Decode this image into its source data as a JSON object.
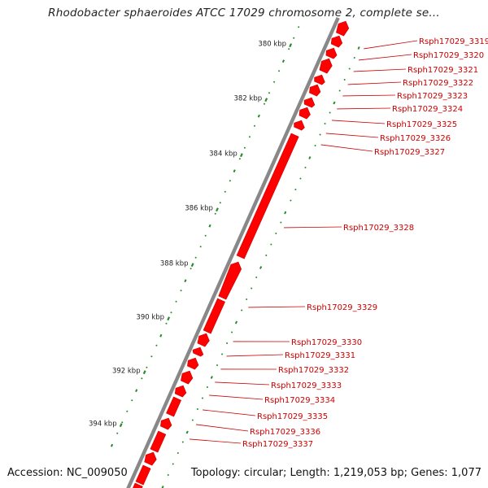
{
  "title": "Rhodobacter sphaeroides ATCC 17029 chromosome 2, complete se...",
  "footer": {
    "accession": "Accession: NC_009050",
    "info": "Topology: circular; Length: 1,219,053 bp; Genes: 1,077"
  },
  "colors": {
    "gene": "#ff0000",
    "gene_dark": "#c80000",
    "backbone": "#888888",
    "tick_label": "#222222",
    "dotted_track": "#2a8a2a",
    "label": "#cc0000"
  },
  "kbp_ticks": [
    "380 kbp",
    "382 kbp",
    "384 kbp",
    "386 kbp",
    "388 kbp",
    "390 kbp",
    "392 kbp",
    "394 kbp"
  ],
  "gene_labels": [
    "Rsph17029_3319",
    "Rsph17029_3320",
    "Rsph17029_3321",
    "Rsph17029_3322",
    "Rsph17029_3323",
    "Rsph17029_3324",
    "Rsph17029_3325",
    "Rsph17029_3326",
    "Rsph17029_3327",
    "Rsph17029_3328",
    "Rsph17029_3329",
    "Rsph17029_3330",
    "Rsph17029_3331",
    "Rsph17029_3332",
    "Rsph17029_3333",
    "Rsph17029_3334",
    "Rsph17029_3335",
    "Rsph17029_3336",
    "Rsph17029_3337"
  ]
}
